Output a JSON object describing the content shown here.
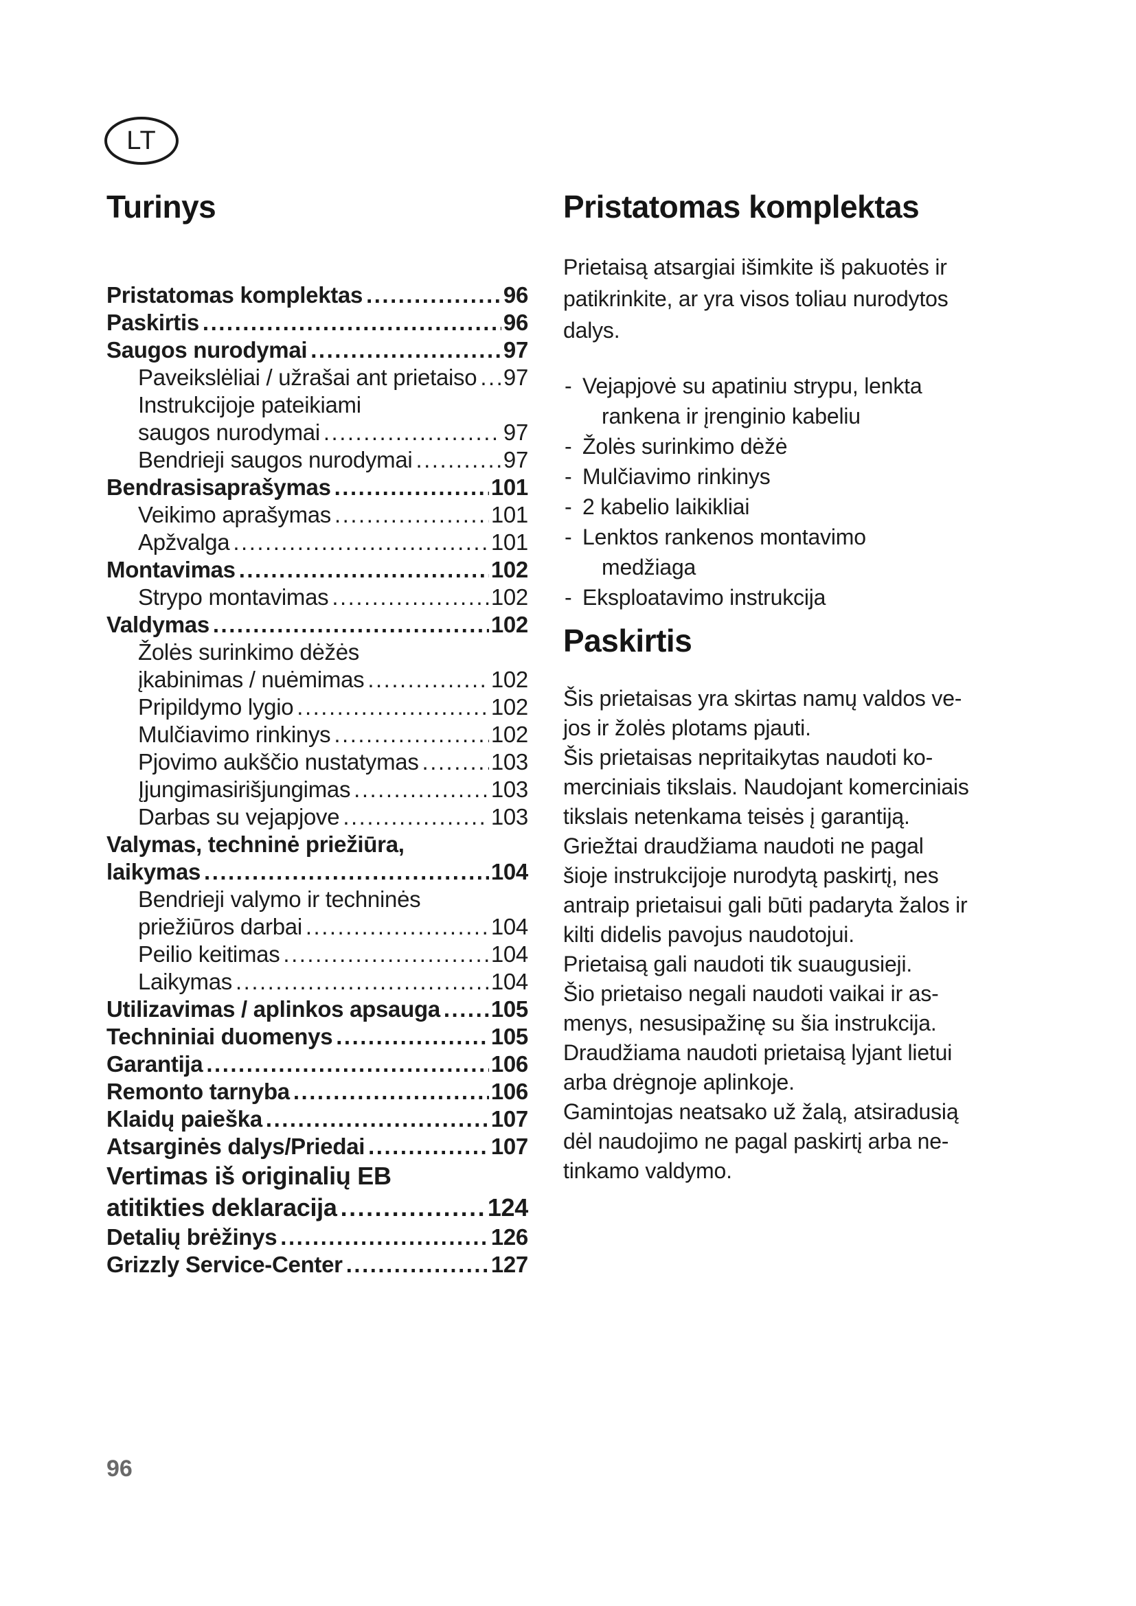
{
  "badge": {
    "label": "LT"
  },
  "toc": {
    "title": "Turinys",
    "leader_char": ".",
    "entries": [
      {
        "label": "Pristatomas komplektas",
        "page": "96",
        "bold": true,
        "indent": 0,
        "big": false
      },
      {
        "label": "Paskirtis",
        "page": "96",
        "bold": true,
        "indent": 0,
        "big": false
      },
      {
        "label": "Saugos nurodymai",
        "page": "97",
        "bold": true,
        "indent": 0,
        "big": false
      },
      {
        "label": "Paveikslėliai / užrašai ant prietaiso",
        "page": "97",
        "bold": false,
        "indent": 1,
        "big": false
      },
      {
        "label": "Instrukcijoje pateikiami",
        "page": null,
        "bold": false,
        "indent": 1,
        "big": false
      },
      {
        "label": "saugos nurodymai",
        "page": "97",
        "bold": false,
        "indent": 1,
        "big": false
      },
      {
        "label": "Bendrieji saugos nurodymai",
        "page": "97",
        "bold": false,
        "indent": 1,
        "big": false
      },
      {
        "label": "Bendrasisaprašymas",
        "page": "101",
        "bold": true,
        "indent": 0,
        "big": false
      },
      {
        "label": "Veikimo aprašymas",
        "page": "101",
        "bold": false,
        "indent": 1,
        "big": false
      },
      {
        "label": "Apžvalga",
        "page": "101",
        "bold": false,
        "indent": 1,
        "big": false
      },
      {
        "label": "Montavimas",
        "page": "102",
        "bold": true,
        "indent": 0,
        "big": false
      },
      {
        "label": "Strypo montavimas",
        "page": "102",
        "bold": false,
        "indent": 1,
        "big": false
      },
      {
        "label": "Valdymas",
        "page": "102",
        "bold": true,
        "indent": 0,
        "big": false
      },
      {
        "label": "Žolės surinkimo dėžės",
        "page": null,
        "bold": false,
        "indent": 1,
        "big": false
      },
      {
        "label": "įkabinimas / nuėmimas",
        "page": "102",
        "bold": false,
        "indent": 1,
        "big": false
      },
      {
        "label": "Pripildymo lygio",
        "page": "102",
        "bold": false,
        "indent": 1,
        "big": false
      },
      {
        "label": "Mulčiavimo rinkinys",
        "page": "102",
        "bold": false,
        "indent": 1,
        "big": false
      },
      {
        "label": "Pjovimo aukščio nustatymas",
        "page": "103",
        "bold": false,
        "indent": 1,
        "big": false
      },
      {
        "label": "Įjungimasirišjungimas",
        "page": "103",
        "bold": false,
        "indent": 1,
        "big": false
      },
      {
        "label": "Darbas su vejapjove",
        "page": "103",
        "bold": false,
        "indent": 1,
        "big": false
      },
      {
        "label": "Valymas, techninė priežiūra,",
        "page": null,
        "bold": true,
        "indent": 0,
        "big": false
      },
      {
        "label": "laikymas",
        "page": "104",
        "bold": true,
        "indent": 0,
        "big": false
      },
      {
        "label": "Bendrieji valymo ir techninės",
        "page": null,
        "bold": false,
        "indent": 1,
        "big": false
      },
      {
        "label": "priežiūros darbai",
        "page": "104",
        "bold": false,
        "indent": 1,
        "big": false
      },
      {
        "label": "Peilio keitimas",
        "page": "104",
        "bold": false,
        "indent": 1,
        "big": false
      },
      {
        "label": "Laikymas",
        "page": "104",
        "bold": false,
        "indent": 1,
        "big": false
      },
      {
        "label": "Utilizavimas / aplinkos apsauga",
        "page": "105",
        "bold": true,
        "indent": 0,
        "big": false
      },
      {
        "label": "Techniniai duomenys",
        "page": "105",
        "bold": true,
        "indent": 0,
        "big": false
      },
      {
        "label": "Garantija",
        "page": "106",
        "bold": true,
        "indent": 0,
        "big": false
      },
      {
        "label": "Remonto tarnyba",
        "page": "106",
        "bold": true,
        "indent": 0,
        "big": false
      },
      {
        "label": "Klaidų paieška",
        "page": "107",
        "bold": true,
        "indent": 0,
        "big": false
      },
      {
        "label": "Atsarginės dalys/Priedai",
        "page": "107",
        "bold": true,
        "indent": 0,
        "big": false
      },
      {
        "label": "Vertimas iš originalių EB",
        "page": null,
        "bold": true,
        "indent": 0,
        "big": true
      },
      {
        "label": "atitikties deklaracija",
        "page": "124",
        "bold": true,
        "indent": 0,
        "big": true
      },
      {
        "label": "Detalių brėžinys",
        "page": "126",
        "bold": true,
        "indent": 0,
        "big": false
      },
      {
        "label": "Grizzly Service-Center",
        "page": "127",
        "bold": true,
        "indent": 0,
        "big": false
      }
    ]
  },
  "sections": [
    {
      "title": "Pristatomas komplektas",
      "intro_lines": [
        "Prietaisą atsargiai išimkite iš pakuotės ir",
        "patikrinkite, ar yra visos toliau nurodytos",
        "dalys."
      ],
      "bullets": [
        [
          "Vejapjovė su apatiniu strypu, lenkta",
          "rankena ir įrenginio kabeliu"
        ],
        [
          "Žolės surinkimo dėžė"
        ],
        [
          "Mulčiavimo rinkinys"
        ],
        [
          "2 kabelio laikikliai"
        ],
        [
          "Lenktos rankenos montavimo",
          "medžiaga"
        ],
        [
          "Eksploatavimo instrukcija"
        ]
      ],
      "bullet_marker": "-"
    },
    {
      "title": "Paskirtis",
      "body_lines": [
        "Šis prietaisas yra skirtas namų valdos ve-",
        "jos ir žolės plotams pjauti.",
        "Šis prietaisas nepritaikytas naudoti ko-",
        "merciniais tikslais. Naudojant komerciniais",
        "tikslais netenkama teisės į garantiją.",
        "Griežtai draudžiama naudoti ne pagal",
        "šioje instrukcijoje nurodytą paskirtį, nes",
        "antraip prietaisui gali būti padaryta žalos ir",
        "kilti didelis pavojus naudotojui.",
        "Prietaisą gali naudoti tik suaugusieji.",
        "Šio prietaiso negali naudoti vaikai ir as-",
        "menys, nesusipažinę su šia instrukcija.",
        "Draudžiama naudoti prietaisą lyjant lietui",
        "arba drėgnoje aplinkoje.",
        "Gamintojas neatsako už žalą, atsiradusią",
        "dėl naudojimo ne pagal paskirtį arba ne-",
        "tinkamo valdymo."
      ]
    }
  ],
  "footer": {
    "page_number": "96"
  }
}
